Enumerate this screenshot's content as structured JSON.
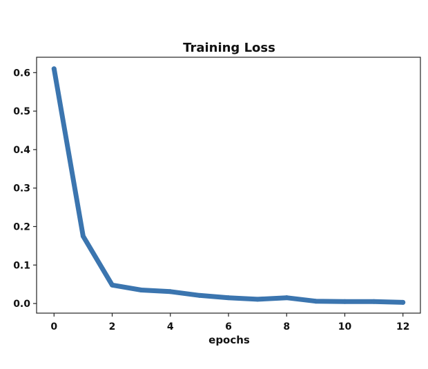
{
  "chart_data": {
    "type": "line",
    "title": "Training Loss",
    "xlabel": "epochs",
    "ylabel": "",
    "xlim": [
      -0.6,
      12.6
    ],
    "ylim": [
      -0.025,
      0.64
    ],
    "x_ticks": [
      0,
      2,
      4,
      6,
      8,
      10,
      12
    ],
    "y_ticks": [
      0.0,
      0.1,
      0.2,
      0.3,
      0.4,
      0.5,
      0.6
    ],
    "x_tick_labels": [
      "0",
      "2",
      "4",
      "6",
      "8",
      "10",
      "12"
    ],
    "y_tick_labels": [
      "0.0",
      "0.1",
      "0.2",
      "0.3",
      "0.4",
      "0.5",
      "0.6"
    ],
    "grid": false,
    "series": [
      {
        "color": "#3b75af",
        "x": [
          0,
          1,
          2,
          3,
          4,
          5,
          6,
          7,
          8,
          9,
          10,
          11,
          12
        ],
        "y": [
          0.61,
          0.175,
          0.048,
          0.035,
          0.031,
          0.021,
          0.015,
          0.011,
          0.015,
          0.006,
          0.005,
          0.005,
          0.003
        ]
      }
    ]
  }
}
